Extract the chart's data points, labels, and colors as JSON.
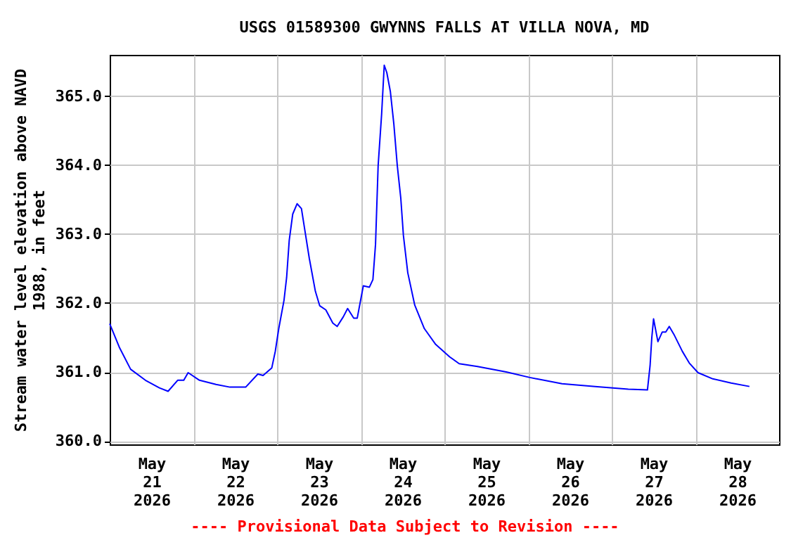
{
  "chart_data": {
    "type": "line",
    "title": "USGS 01589300 GWYNNS FALLS AT VILLA NOVA, MD",
    "ylabel": "Stream water level elevation above NAVD 1988, in feet",
    "annotations": [
      "---- Provisional Data Subject to Revision ----"
    ],
    "xlim": [
      "2026-05-21T00:00",
      "2026-05-29T00:00"
    ],
    "xticks": [
      {
        "value": "2026-05-21T12:00",
        "label": "May 21 2026"
      },
      {
        "value": "2026-05-22T12:00",
        "label": "May 22 2026"
      },
      {
        "value": "2026-05-23T12:00",
        "label": "May 23 2026"
      },
      {
        "value": "2026-05-24T12:00",
        "label": "May 24 2026"
      },
      {
        "value": "2026-05-25T12:00",
        "label": "May 25 2026"
      },
      {
        "value": "2026-05-26T12:00",
        "label": "May 26 2026"
      },
      {
        "value": "2026-05-27T12:00",
        "label": "May 27 2026"
      },
      {
        "value": "2026-05-28T12:00",
        "label": "May 28 2026"
      },
      {
        "value": "2026-05-22T00:00",
        "label": null
      },
      {
        "value": "2026-05-23T00:00",
        "label": null
      },
      {
        "value": "2026-05-24T00:00",
        "label": null
      },
      {
        "value": "2026-05-25T00:00",
        "label": null
      },
      {
        "value": "2026-05-26T00:00",
        "label": null
      },
      {
        "value": "2026-05-27T00:00",
        "label": null
      },
      {
        "value": "2026-05-28T00:00",
        "label": null
      }
    ],
    "ylim": [
      359.95,
      365.6
    ],
    "yticks": [
      {
        "value": 360,
        "label": "360.0"
      },
      {
        "value": 361,
        "label": "361.0"
      },
      {
        "value": 362,
        "label": "362.0"
      },
      {
        "value": 363,
        "label": "363.0"
      },
      {
        "value": 364,
        "label": "364.0"
      },
      {
        "value": 365,
        "label": "365.0"
      }
    ],
    "grid": true,
    "series": [
      {
        "color": "#0000ff",
        "x": [
          "2026-05-21T00:00",
          "2026-05-21T02:45",
          "2026-05-21T06:00",
          "2026-05-21T10:15",
          "2026-05-21T14:15",
          "2026-05-21T16:45",
          "2026-05-21T19:30",
          "2026-05-21T21:15",
          "2026-05-21T22:30",
          "2026-05-22T01:45",
          "2026-05-22T06:30",
          "2026-05-22T10:30",
          "2026-05-22T15:00",
          "2026-05-22T18:30",
          "2026-05-22T20:00",
          "2026-05-22T22:30",
          "2026-05-22T23:30",
          "2026-05-23T00:30",
          "2026-05-23T02:00",
          "2026-05-23T02:45",
          "2026-05-23T03:30",
          "2026-05-23T04:30",
          "2026-05-23T05:45",
          "2026-05-23T07:00",
          "2026-05-23T08:00",
          "2026-05-23T09:15",
          "2026-05-23T11:00",
          "2026-05-23T12:15",
          "2026-05-23T14:00",
          "2026-05-23T16:00",
          "2026-05-23T17:15",
          "2026-05-23T19:00",
          "2026-05-23T20:15",
          "2026-05-23T22:00",
          "2026-05-23T23:00",
          "2026-05-24T00:45",
          "2026-05-24T02:30",
          "2026-05-24T03:30",
          "2026-05-24T04:15",
          "2026-05-24T05:00",
          "2026-05-24T06:00",
          "2026-05-24T06:45",
          "2026-05-24T07:30",
          "2026-05-24T08:30",
          "2026-05-24T09:30",
          "2026-05-24T10:30",
          "2026-05-24T11:30",
          "2026-05-24T12:15",
          "2026-05-24T13:30",
          "2026-05-24T15:30",
          "2026-05-24T18:15",
          "2026-05-24T21:30",
          "2026-05-25T01:30",
          "2026-05-25T04:15",
          "2026-05-25T09:30",
          "2026-05-25T17:45",
          "2026-05-26T00:30",
          "2026-05-26T09:45",
          "2026-05-26T19:15",
          "2026-05-27T04:45",
          "2026-05-27T10:15",
          "2026-05-27T11:00",
          "2026-05-27T11:30",
          "2026-05-27T12:00",
          "2026-05-27T13:15",
          "2026-05-27T14:30",
          "2026-05-27T15:30",
          "2026-05-27T16:30",
          "2026-05-27T18:00",
          "2026-05-27T20:15",
          "2026-05-27T22:15",
          "2026-05-28T00:45",
          "2026-05-28T05:00",
          "2026-05-28T10:15",
          "2026-05-28T15:30"
        ],
        "values": [
          361.7,
          361.36,
          361.04,
          360.88,
          360.77,
          360.72,
          360.88,
          360.88,
          360.99,
          360.88,
          360.82,
          360.78,
          360.78,
          360.97,
          360.95,
          361.06,
          361.3,
          361.63,
          362.04,
          362.37,
          362.91,
          363.29,
          363.44,
          363.37,
          363.05,
          362.65,
          362.17,
          361.96,
          361.9,
          361.71,
          361.66,
          361.8,
          361.92,
          361.78,
          361.78,
          362.25,
          362.23,
          362.34,
          362.85,
          363.99,
          364.74,
          365.45,
          365.34,
          365.07,
          364.6,
          363.99,
          363.52,
          362.98,
          362.44,
          361.97,
          361.63,
          361.4,
          361.22,
          361.12,
          361.08,
          361.0,
          360.92,
          360.83,
          360.79,
          360.75,
          360.74,
          361.09,
          361.5,
          361.77,
          361.44,
          361.58,
          361.58,
          361.66,
          361.53,
          361.3,
          361.13,
          360.99,
          360.9,
          360.84,
          360.79
        ]
      }
    ]
  }
}
